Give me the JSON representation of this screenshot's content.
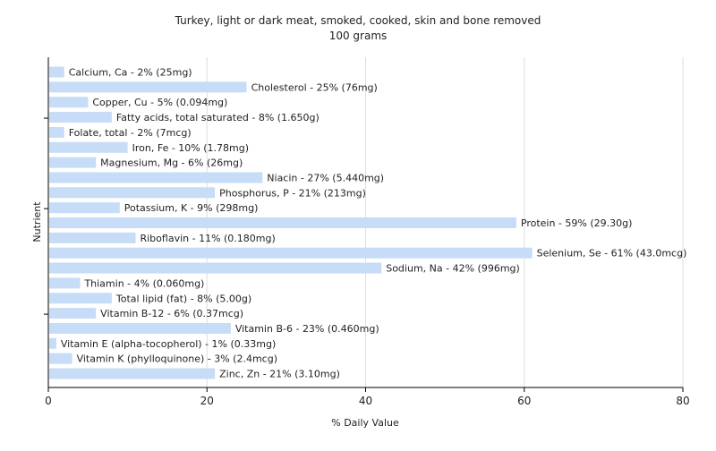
{
  "chart_data": {
    "type": "bar",
    "orientation": "horizontal",
    "title": "Turkey, light or dark meat, smoked, cooked, skin and bone removed",
    "subtitle": "100 grams",
    "xlabel": "% Daily Value",
    "ylabel": "Nutrient",
    "xlim": [
      0,
      80
    ],
    "xticks": [
      "0",
      "20",
      "40",
      "60",
      "80"
    ],
    "grid": true,
    "bar_color": "#c6dcf7",
    "categories": [
      "Calcium, Ca",
      "Cholesterol",
      "Copper, Cu",
      "Fatty acids, total saturated",
      "Folate, total",
      "Iron, Fe",
      "Magnesium, Mg",
      "Niacin",
      "Phosphorus, P",
      "Potassium, K",
      "Protein",
      "Riboflavin",
      "Selenium, Se",
      "Sodium, Na",
      "Thiamin",
      "Total lipid (fat)",
      "Vitamin B-12",
      "Vitamin B-6",
      "Vitamin E (alpha-tocopherol)",
      "Vitamin K (phylloquinone)",
      "Zinc, Zn"
    ],
    "values": [
      2,
      25,
      5,
      8,
      2,
      10,
      6,
      27,
      21,
      9,
      59,
      11,
      61,
      42,
      4,
      8,
      6,
      23,
      1,
      3,
      21
    ],
    "labels": [
      "Calcium, Ca - 2% (25mg)",
      "Cholesterol - 25% (76mg)",
      "Copper, Cu - 5% (0.094mg)",
      "Fatty acids, total saturated - 8% (1.650g)",
      "Folate, total - 2% (7mcg)",
      "Iron, Fe - 10% (1.78mg)",
      "Magnesium, Mg - 6% (26mg)",
      "Niacin - 27% (5.440mg)",
      "Phosphorus, P - 21% (213mg)",
      "Potassium, K - 9% (298mg)",
      "Protein - 59% (29.30g)",
      "Riboflavin - 11% (0.180mg)",
      "Selenium, Se - 61% (43.0mcg)",
      "Sodium, Na - 42% (996mg)",
      "Thiamin - 4% (0.060mg)",
      "Total lipid (fat) - 8% (5.00g)",
      "Vitamin B-12 - 6% (0.37mcg)",
      "Vitamin B-6 - 23% (0.460mg)",
      "Vitamin E (alpha-tocopherol) - 1% (0.33mg)",
      "Vitamin K (phylloquinone) - 3% (2.4mcg)",
      "Zinc, Zn - 21% (3.10mg)"
    ]
  }
}
